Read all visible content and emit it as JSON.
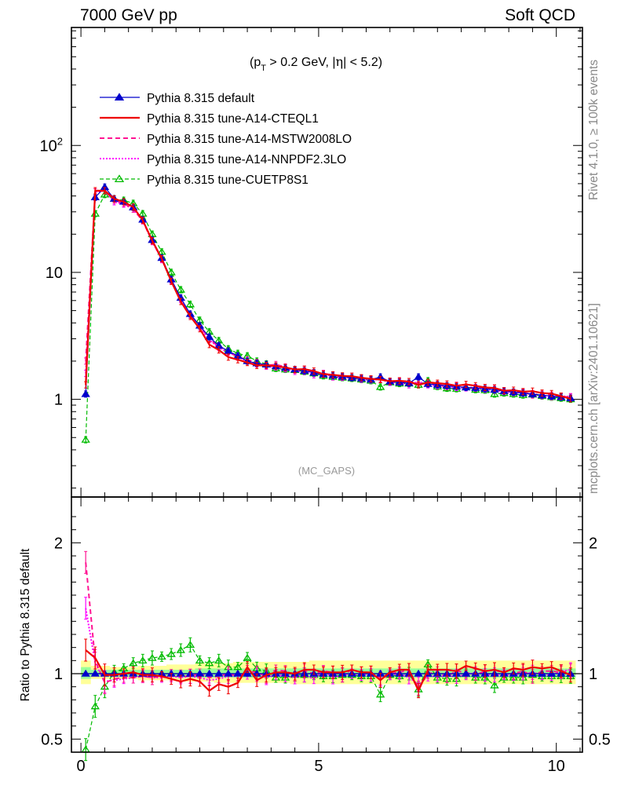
{
  "header": {
    "left": "7000 GeV pp",
    "right": "Soft QCD"
  },
  "side": {
    "rivet": "Rivet 4.1.0, ≥ 100k events",
    "mcplots": "mcplots.cern.ch [arXiv:2401.10621]"
  },
  "colors": {
    "default": "#0000cc",
    "cteql1": "#ee0000",
    "mstw": "#ff1493",
    "nnpdf": "#ff00ff",
    "cuetp8s1": "#00bb00",
    "band_yellow": "#ffff99",
    "band_green": "#99ff99"
  },
  "chart_data": {
    "type": "line",
    "title": "(p_T > 0.2 GeV, |η| < 5.2)",
    "watermark": "(MC_GAPS)",
    "xlabel": "",
    "ylabel": "",
    "ratio_ylabel": "Ratio to Pythia 8.315 default",
    "xlim": [
      -0.2,
      10.55
    ],
    "ylim": [
      0.17,
      850
    ],
    "ratio_ylim": [
      0.4,
      2.35
    ],
    "xticks": [
      0,
      5,
      10
    ],
    "xtick_labels": [
      "0",
      "5",
      "10"
    ],
    "yticks": [
      1,
      10,
      100
    ],
    "ytick_labels": [
      "1",
      "10",
      "10²"
    ],
    "ratio_yticks": [
      0.5,
      1,
      2
    ],
    "ratio_ytick_labels": [
      "0.5",
      "1",
      "2"
    ],
    "title_parts": {
      "open": "(p",
      "sub": "T",
      "mid": " > 0.2 GeV, ",
      "eta": "η",
      "close": "| < 5.2)"
    },
    "legend": [
      "Pythia 8.315 default",
      "Pythia 8.315 tune-A14-CTEQL1",
      "Pythia 8.315 tune-A14-MSTW2008LO",
      "Pythia 8.315 tune-A14-NNPDF2.3LO",
      "Pythia 8.315 tune-CUETP8S1"
    ],
    "x": [
      0.1,
      0.3,
      0.5,
      0.7,
      0.9,
      1.1,
      1.3,
      1.5,
      1.7,
      1.9,
      2.1,
      2.3,
      2.5,
      2.7,
      2.9,
      3.1,
      3.3,
      3.5,
      3.7,
      3.9,
      4.1,
      4.3,
      4.5,
      4.7,
      4.9,
      5.1,
      5.3,
      5.5,
      5.7,
      5.9,
      6.1,
      6.3,
      6.5,
      6.7,
      6.9,
      7.1,
      7.3,
      7.5,
      7.7,
      7.9,
      8.1,
      8.3,
      8.5,
      8.7,
      8.9,
      9.1,
      9.3,
      9.5,
      9.7,
      9.9,
      10.1,
      10.3
    ],
    "series": [
      {
        "name": "Pythia 8.315 default",
        "key": "default",
        "values": [
          1.1,
          39,
          47,
          38,
          36,
          32.5,
          26,
          18,
          13,
          8.8,
          6.3,
          4.7,
          3.8,
          3.1,
          2.65,
          2.4,
          2.2,
          2.0,
          1.92,
          1.88,
          1.82,
          1.77,
          1.72,
          1.68,
          1.62,
          1.57,
          1.54,
          1.51,
          1.48,
          1.46,
          1.43,
          1.5,
          1.38,
          1.36,
          1.34,
          1.5,
          1.32,
          1.3,
          1.28,
          1.26,
          1.24,
          1.23,
          1.21,
          1.19,
          1.16,
          1.14,
          1.12,
          1.1,
          1.08,
          1.06,
          1.04,
          1.02
        ],
        "ratio": [
          1,
          1,
          1,
          1,
          1,
          1,
          1,
          1,
          1,
          1,
          1,
          1,
          1,
          1,
          1,
          1,
          1,
          1,
          1,
          1,
          1,
          1,
          1,
          1,
          1,
          1,
          1,
          1,
          1,
          1,
          1,
          1,
          1,
          1,
          1,
          1,
          1,
          1,
          1,
          1,
          1,
          1,
          1,
          1,
          1,
          1,
          1,
          1,
          1,
          1,
          1,
          1
        ]
      },
      {
        "name": "Pythia 8.315 tune-A14-CTEQL1",
        "key": "cteql1",
        "values": [
          1.3,
          44,
          44,
          38,
          36,
          32.7,
          25.8,
          17.8,
          12.8,
          8.5,
          5.9,
          4.5,
          3.6,
          2.7,
          2.45,
          2.15,
          2.05,
          1.95,
          1.85,
          1.85,
          1.83,
          1.78,
          1.72,
          1.73,
          1.67,
          1.58,
          1.56,
          1.53,
          1.52,
          1.48,
          1.45,
          1.43,
          1.39,
          1.4,
          1.38,
          1.3,
          1.36,
          1.34,
          1.32,
          1.28,
          1.31,
          1.28,
          1.24,
          1.23,
          1.17,
          1.18,
          1.15,
          1.16,
          1.12,
          1.11,
          1.06,
          1.01
        ],
        "ratio": [
          1.18,
          1.12,
          0.99,
          0.99,
          1.0,
          1.01,
          0.99,
          0.99,
          0.98,
          0.96,
          0.94,
          0.96,
          0.94,
          0.87,
          0.92,
          0.9,
          0.93,
          1.05,
          0.95,
          0.99,
          1.01,
          1.01,
          1.0,
          1.03,
          1.03,
          1.01,
          1.01,
          1.01,
          1.03,
          1.01,
          1.01,
          0.95,
          1.01,
          1.03,
          1.03,
          0.87,
          1.03,
          1.03,
          1.03,
          1.02,
          1.06,
          1.04,
          1.02,
          1.03,
          1.01,
          1.04,
          1.03,
          1.05,
          1.04,
          1.05,
          1.02,
          0.99
        ]
      },
      {
        "name": "Pythia 8.315 tune-A14-MSTW2008LO",
        "key": "mstw",
        "values": [
          2.0,
          43,
          44,
          37,
          35,
          31.5,
          25.5,
          17.5,
          12.8,
          8.7,
          6.2,
          4.6,
          3.8,
          3.0,
          2.6,
          2.4,
          2.15,
          2.05,
          1.95,
          1.85,
          1.88,
          1.8,
          1.7,
          1.72,
          1.62,
          1.6,
          1.55,
          1.5,
          1.52,
          1.47,
          1.44,
          1.45,
          1.38,
          1.38,
          1.38,
          1.34,
          1.32,
          1.31,
          1.26,
          1.29,
          1.25,
          1.22,
          1.24,
          1.22,
          1.16,
          1.14,
          1.14,
          1.08,
          1.1,
          1.08,
          1.05,
          1.04
        ],
        "ratio": [
          1.85,
          1.1,
          0.93,
          0.96,
          0.97,
          0.97,
          0.98,
          0.97,
          0.98,
          0.99,
          0.98,
          0.98,
          1.0,
          0.97,
          0.98,
          1.0,
          0.98,
          1.02,
          1.01,
          0.98,
          1.03,
          1.02,
          0.99,
          1.02,
          1.0,
          1.02,
          1.01,
          0.99,
          1.03,
          1.01,
          1.01,
          0.97,
          1.0,
          1.01,
          1.03,
          0.89,
          1.0,
          1.01,
          0.98,
          1.02,
          1.01,
          0.99,
          1.02,
          1.03,
          1.0,
          1.0,
          1.02,
          0.98,
          1.02,
          1.02,
          1.01,
          1.02
        ]
      },
      {
        "name": "Pythia 8.315 tune-A14-NNPDF2.3LO",
        "key": "nnpdf",
        "values": [
          1.6,
          43,
          44,
          36,
          34.5,
          31.5,
          25.5,
          17.5,
          12.6,
          8.6,
          6.1,
          4.6,
          3.7,
          2.95,
          2.55,
          2.35,
          2.15,
          2.0,
          1.9,
          1.82,
          1.8,
          1.74,
          1.66,
          1.66,
          1.56,
          1.6,
          1.5,
          1.49,
          1.48,
          1.44,
          1.42,
          1.44,
          1.36,
          1.36,
          1.3,
          1.38,
          1.3,
          1.28,
          1.26,
          1.24,
          1.23,
          1.24,
          1.2,
          1.18,
          1.15,
          1.13,
          1.12,
          1.11,
          1.07,
          1.05,
          1.06,
          1.05
        ],
        "ratio": [
          1.5,
          1.08,
          0.94,
          0.95,
          0.96,
          0.97,
          0.98,
          0.97,
          0.97,
          0.98,
          0.97,
          0.98,
          0.97,
          0.95,
          0.96,
          0.98,
          0.98,
          1.0,
          0.99,
          0.97,
          0.99,
          0.98,
          0.97,
          0.99,
          0.96,
          1.02,
          0.97,
          0.99,
          1.0,
          0.99,
          0.99,
          0.96,
          0.99,
          1.0,
          0.97,
          0.92,
          0.98,
          0.98,
          0.98,
          0.98,
          0.99,
          1.01,
          0.99,
          0.99,
          0.99,
          0.99,
          1.0,
          1.01,
          0.99,
          0.99,
          1.02,
          1.03
        ]
      },
      {
        "name": "Pythia 8.315 tune-CUETP8S1",
        "key": "cuetp8s1",
        "values": [
          0.48,
          29,
          41,
          38,
          37,
          35,
          29,
          20,
          14.5,
          10,
          7.3,
          5.6,
          4.2,
          3.4,
          2.9,
          2.5,
          2.3,
          2.2,
          2.0,
          1.9,
          1.75,
          1.72,
          1.7,
          1.65,
          1.6,
          1.53,
          1.5,
          1.48,
          1.46,
          1.43,
          1.4,
          1.25,
          1.36,
          1.33,
          1.33,
          1.3,
          1.4,
          1.26,
          1.22,
          1.21,
          1.24,
          1.19,
          1.18,
          1.1,
          1.12,
          1.1,
          1.08,
          1.09,
          1.06,
          1.04,
          1.02,
          1.0
        ],
        "ratio": [
          0.42,
          0.75,
          0.9,
          1.01,
          1.04,
          1.08,
          1.1,
          1.12,
          1.13,
          1.15,
          1.18,
          1.22,
          1.1,
          1.08,
          1.1,
          1.05,
          1.05,
          1.12,
          1.04,
          1.02,
          0.97,
          0.97,
          0.99,
          0.99,
          0.99,
          0.98,
          0.98,
          0.99,
          0.99,
          0.98,
          0.98,
          0.84,
          0.99,
          0.98,
          1.0,
          0.88,
          1.07,
          0.97,
          0.96,
          0.96,
          1.0,
          0.97,
          0.97,
          0.91,
          0.97,
          0.97,
          0.97,
          0.99,
          0.98,
          0.98,
          0.98,
          0.98
        ]
      }
    ],
    "ratio_band": {
      "yellow": [
        [
          0.92,
          1.1
        ],
        [
          0.96,
          1.06
        ],
        [
          0.96,
          1.06
        ],
        [
          0.96,
          1.05
        ],
        [
          0.96,
          1.05
        ],
        [
          0.96,
          1.05
        ],
        [
          0.95,
          1.06
        ],
        [
          0.95,
          1.06
        ],
        [
          0.95,
          1.06
        ],
        [
          0.95,
          1.07
        ],
        [
          0.94,
          1.07
        ],
        [
          0.94,
          1.07
        ],
        [
          0.94,
          1.08
        ],
        [
          0.94,
          1.08
        ],
        [
          0.93,
          1.08
        ],
        [
          0.93,
          1.08
        ],
        [
          0.93,
          1.09
        ],
        [
          0.93,
          1.09
        ],
        [
          0.93,
          1.09
        ],
        [
          0.93,
          1.09
        ],
        [
          0.93,
          1.09
        ],
        [
          0.93,
          1.09
        ],
        [
          0.92,
          1.09
        ],
        [
          0.92,
          1.09
        ],
        [
          0.92,
          1.1
        ],
        [
          0.92,
          1.1
        ],
        [
          0.92,
          1.1
        ],
        [
          0.92,
          1.1
        ],
        [
          0.92,
          1.1
        ],
        [
          0.92,
          1.1
        ],
        [
          0.92,
          1.1
        ],
        [
          0.92,
          1.1
        ],
        [
          0.92,
          1.1
        ],
        [
          0.92,
          1.1
        ],
        [
          0.92,
          1.1
        ],
        [
          0.92,
          1.1
        ],
        [
          0.92,
          1.1
        ],
        [
          0.92,
          1.1
        ],
        [
          0.92,
          1.1
        ],
        [
          0.92,
          1.1
        ],
        [
          0.92,
          1.1
        ],
        [
          0.92,
          1.1
        ],
        [
          0.92,
          1.1
        ],
        [
          0.92,
          1.1
        ],
        [
          0.92,
          1.1
        ],
        [
          0.92,
          1.1
        ],
        [
          0.92,
          1.1
        ],
        [
          0.92,
          1.1
        ],
        [
          0.92,
          1.1
        ],
        [
          0.92,
          1.1
        ],
        [
          0.92,
          1.1
        ],
        [
          0.92,
          1.1
        ]
      ],
      "green": [
        [
          0.96,
          1.05
        ],
        [
          0.98,
          1.03
        ],
        [
          0.98,
          1.03
        ],
        [
          0.98,
          1.03
        ],
        [
          0.98,
          1.03
        ],
        [
          0.98,
          1.03
        ],
        [
          0.98,
          1.03
        ],
        [
          0.98,
          1.03
        ],
        [
          0.98,
          1.03
        ],
        [
          0.98,
          1.03
        ],
        [
          0.97,
          1.03
        ],
        [
          0.97,
          1.03
        ],
        [
          0.97,
          1.04
        ],
        [
          0.97,
          1.04
        ],
        [
          0.97,
          1.04
        ],
        [
          0.97,
          1.04
        ],
        [
          0.97,
          1.04
        ],
        [
          0.97,
          1.04
        ],
        [
          0.97,
          1.04
        ],
        [
          0.97,
          1.04
        ],
        [
          0.97,
          1.04
        ],
        [
          0.97,
          1.04
        ],
        [
          0.97,
          1.04
        ],
        [
          0.97,
          1.04
        ],
        [
          0.97,
          1.04
        ],
        [
          0.97,
          1.04
        ],
        [
          0.97,
          1.04
        ],
        [
          0.97,
          1.04
        ],
        [
          0.97,
          1.04
        ],
        [
          0.97,
          1.04
        ],
        [
          0.97,
          1.04
        ],
        [
          0.97,
          1.04
        ],
        [
          0.97,
          1.04
        ],
        [
          0.97,
          1.04
        ],
        [
          0.97,
          1.04
        ],
        [
          0.97,
          1.04
        ],
        [
          0.97,
          1.04
        ],
        [
          0.97,
          1.04
        ],
        [
          0.97,
          1.04
        ],
        [
          0.97,
          1.04
        ],
        [
          0.97,
          1.04
        ],
        [
          0.97,
          1.04
        ],
        [
          0.97,
          1.04
        ],
        [
          0.97,
          1.04
        ],
        [
          0.97,
          1.04
        ],
        [
          0.97,
          1.04
        ],
        [
          0.97,
          1.04
        ],
        [
          0.97,
          1.04
        ],
        [
          0.97,
          1.04
        ],
        [
          0.97,
          1.04
        ],
        [
          0.97,
          1.04
        ],
        [
          0.97,
          1.04
        ]
      ]
    }
  }
}
